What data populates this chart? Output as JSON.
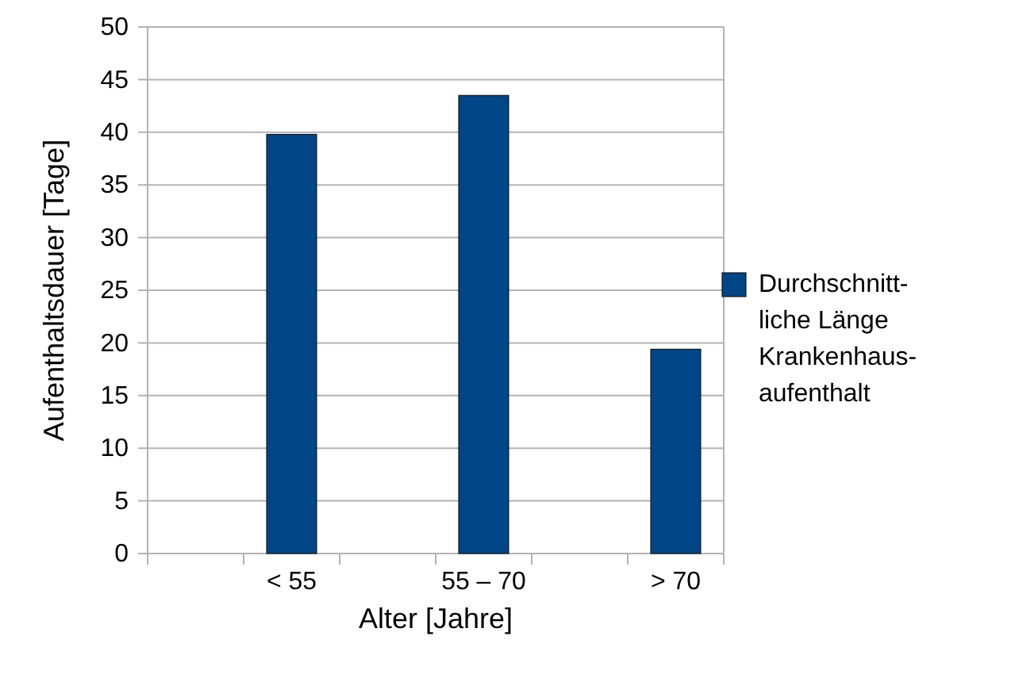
{
  "chart_data": {
    "type": "bar",
    "categories": [
      null,
      "< 55",
      null,
      "55 – 70",
      null,
      "> 70"
    ],
    "series": [
      {
        "name": "Durchschnitt-\nliche Länge\nKrankenhaus-\naufenthalt",
        "color": "#004586",
        "values": [
          null,
          39.8,
          null,
          43.5,
          null,
          19.4
        ]
      }
    ],
    "xlabel": "Alter [Jahre]",
    "ylabel": "Aufenthaltsdauer [Tage]",
    "ylim": [
      0,
      50
    ],
    "yticks": [
      0,
      5,
      10,
      15,
      20,
      25,
      30,
      35,
      40,
      45,
      50
    ],
    "grid": "y",
    "legend": "right"
  }
}
